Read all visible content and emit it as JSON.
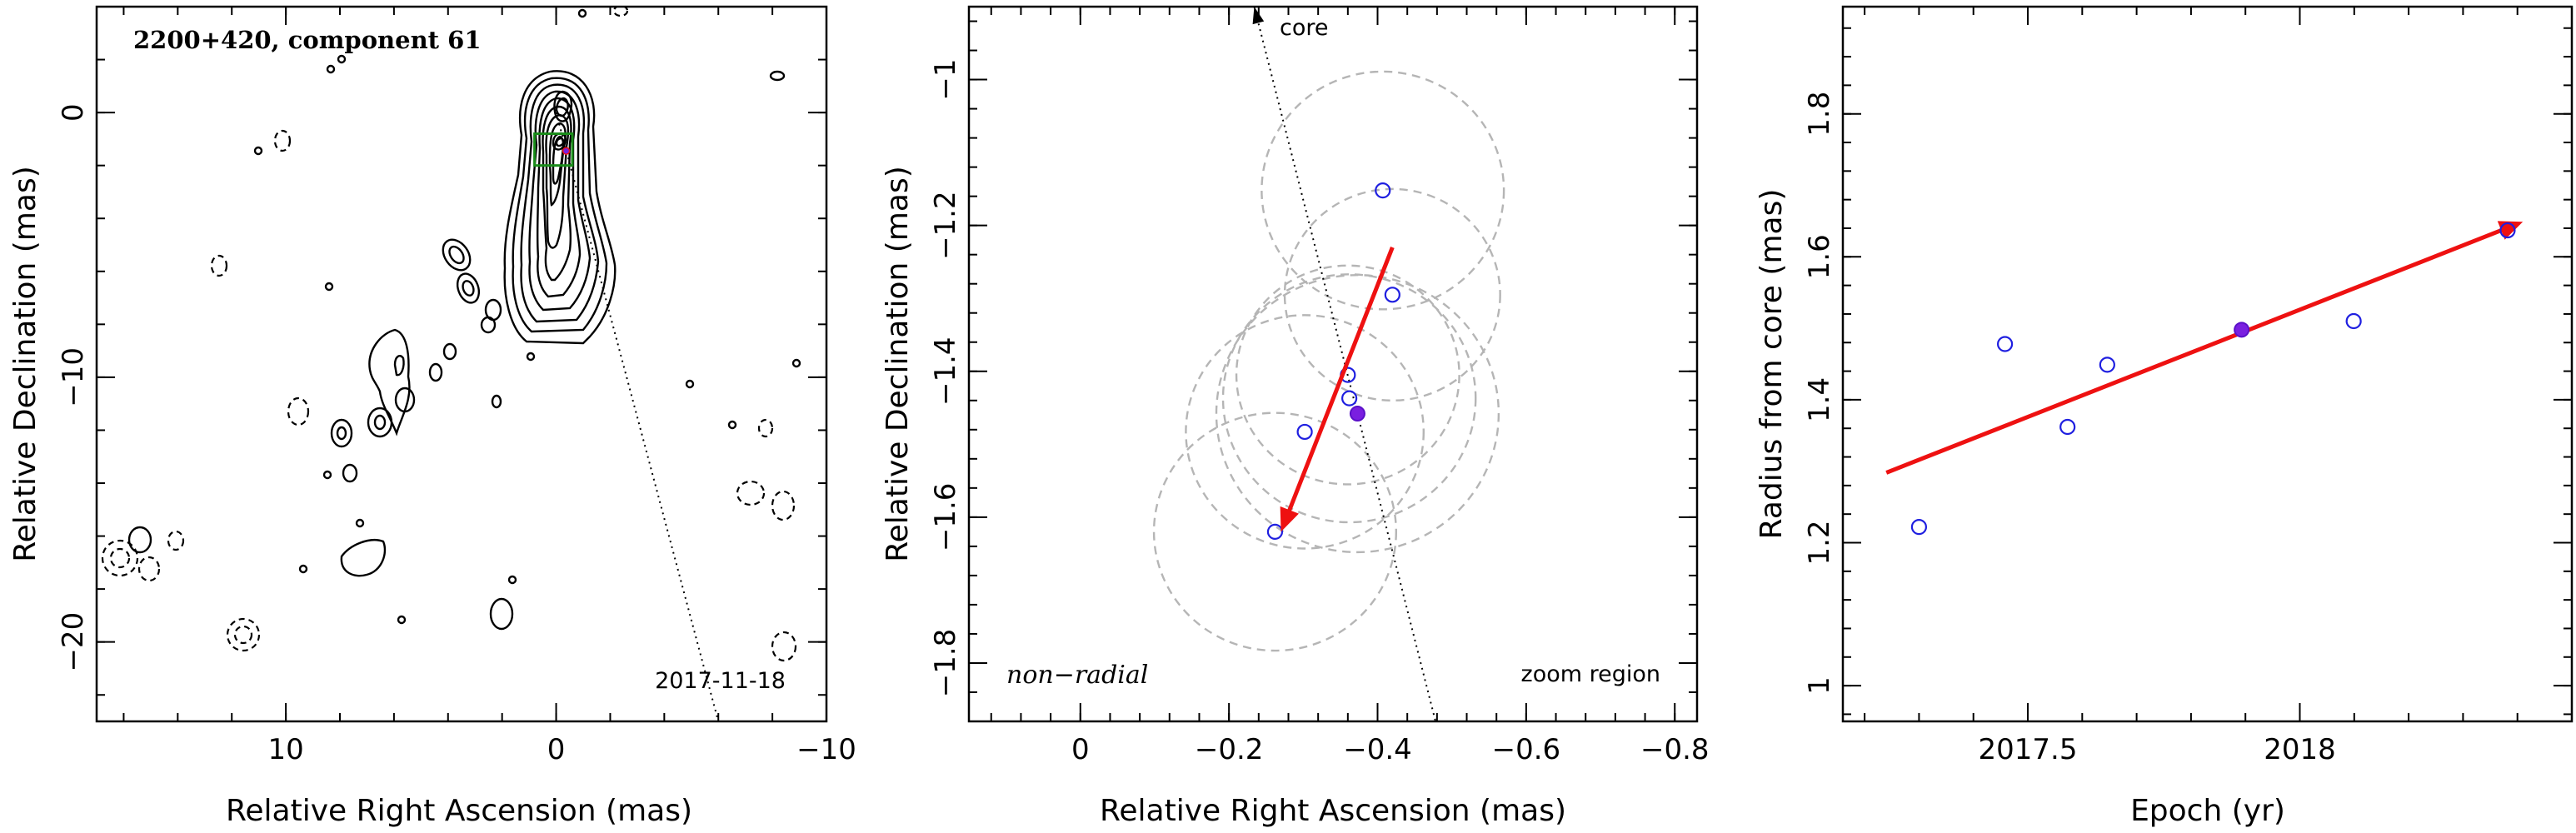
{
  "chart_data": [
    {
      "type": "contour",
      "title": "2200+420, component 61",
      "xlabel": "Relative Right Ascension (mas)",
      "ylabel": "Relative Declination (mas)",
      "xlim": [
        17,
        -10
      ],
      "ylim": [
        -23,
        4
      ],
      "xticks": [
        10,
        0,
        -10
      ],
      "xtick_labels": [
        "10",
        "0",
        "−10"
      ],
      "yticks": [
        0,
        -10,
        -20
      ],
      "ytick_labels": [
        "0",
        "−10",
        "−20"
      ],
      "epoch_label": "2017-11-18",
      "zoom_box": {
        "x": [
          0.8,
          -0.6
        ],
        "y": [
          -0.8,
          -2.0
        ]
      },
      "component_position": {
        "x": -0.37,
        "y": -1.45
      },
      "core_direction_line": {
        "x": [
          0.0,
          -6.0
        ],
        "y": [
          0.0,
          -23.0
        ]
      }
    },
    {
      "type": "scatter",
      "xlabel": "Relative Right Ascension (mas)",
      "ylabel": "Relative Declination (mas)",
      "xlim": [
        0.15,
        -0.83
      ],
      "ylim": [
        -1.88,
        -0.9
      ],
      "xticks": [
        0,
        -0.2,
        -0.4,
        -0.6,
        -0.8
      ],
      "xtick_labels": [
        "0",
        "−0.2",
        "−0.4",
        "−0.6",
        "−0.8"
      ],
      "yticks": [
        -1.0,
        -1.2,
        -1.4,
        -1.6,
        -1.8
      ],
      "ytick_labels": [
        "−1",
        "−1.2",
        "−1.4",
        "−1.6",
        "−1.8"
      ],
      "annotations": {
        "core_label": "core",
        "motion_label": "non−radial",
        "region_label": "zoom region"
      },
      "points": [
        {
          "x": -0.407,
          "y": -1.152,
          "r": 0.163,
          "filled": false
        },
        {
          "x": -0.42,
          "y": -1.295,
          "r": 0.145,
          "filled": false
        },
        {
          "x": -0.36,
          "y": -1.405,
          "r": 0.15,
          "filled": false
        },
        {
          "x": -0.362,
          "y": -1.437,
          "r": 0.17,
          "filled": false
        },
        {
          "x": -0.373,
          "y": -1.458,
          "r": 0.19,
          "filled": true
        },
        {
          "x": -0.302,
          "y": -1.483,
          "r": 0.16,
          "filled": false
        },
        {
          "x": -0.262,
          "y": -1.62,
          "r": 0.163,
          "filled": false
        }
      ],
      "motion_vector": {
        "start": {
          "x": -0.42,
          "y": -1.23
        },
        "end": {
          "x": -0.27,
          "y": -1.62
        }
      },
      "core_direction_line": {
        "x": [
          -0.234,
          -0.478
        ],
        "y": [
          -0.9,
          -1.88
        ]
      }
    },
    {
      "type": "scatter",
      "xlabel": "Epoch (yr)",
      "ylabel": "Radius from core (mas)",
      "xlim": [
        2017.16,
        2018.5
      ],
      "ylim": [
        0.95,
        1.95
      ],
      "xticks": [
        2017.5,
        2018.0
      ],
      "xtick_labels": [
        "2017.5",
        "2018"
      ],
      "yticks": [
        1.0,
        1.2,
        1.4,
        1.6,
        1.8
      ],
      "ytick_labels": [
        "1",
        "1.2",
        "1.4",
        "1.6",
        "1.8"
      ],
      "series": [
        {
          "x": [
            2017.3,
            2017.458,
            2017.573,
            2017.646,
            2017.893,
            2018.099,
            2018.382
          ],
          "y": [
            1.222,
            1.478,
            1.362,
            1.449,
            1.498,
            1.51,
            1.637
          ]
        }
      ],
      "filled_epoch": 2017.893,
      "fit_line": {
        "x": [
          2017.24,
          2018.41
        ],
        "y": [
          1.298,
          1.649
        ]
      }
    }
  ],
  "colors": {
    "points": "#1f1fe0",
    "filled_point": "#7a1fe0",
    "vector": "#ee1111",
    "fit_circles": "#b5b5b5",
    "zoom_box": "#1a8c1a"
  }
}
